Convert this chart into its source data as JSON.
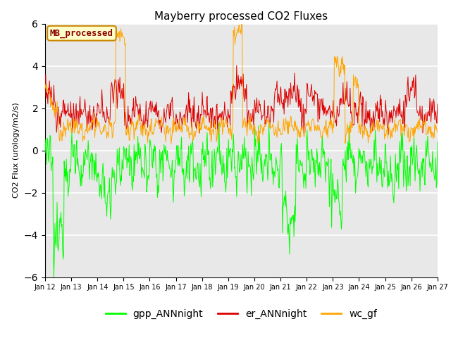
{
  "title": "Mayberry processed CO2 Fluxes",
  "ylabel": "CO2 Flux (urology/m2/s)",
  "ylim": [
    -6,
    6
  ],
  "yticks": [
    -6,
    -4,
    -2,
    0,
    2,
    4,
    6
  ],
  "background_color": "#e8e8e8",
  "legend_label": "MB_processed",
  "series": {
    "gpp_ANNnight": {
      "color": "#00ff00",
      "lw": 0.7
    },
    "er_ANNnight": {
      "color": "#dd0000",
      "lw": 0.7
    },
    "wc_gf": {
      "color": "#ffa500",
      "lw": 0.7
    }
  },
  "xtick_labels": [
    "Jan 12",
    "Jan 13",
    "Jan 14",
    "Jan 15",
    "Jan 16",
    "Jan 17",
    "Jan 18",
    "Jan 19",
    "Jan 20",
    "Jan 21",
    "Jan 22",
    "Jan 23",
    "Jan 24",
    "Jan 25",
    "Jan 26",
    "Jan 27"
  ],
  "bottom_legend": [
    "gpp_ANNnight",
    "er_ANNnight",
    "wc_gf"
  ]
}
